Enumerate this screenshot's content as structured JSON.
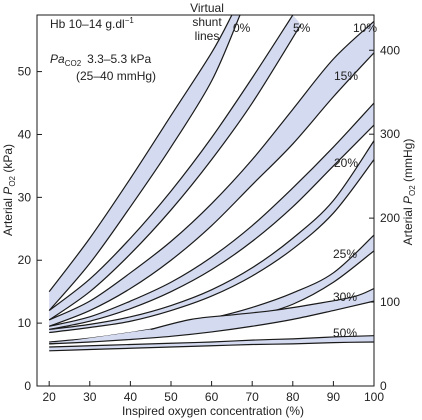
{
  "chart_data": {
    "type": "area",
    "title": "",
    "xlabel": "Inspired oxygen concentration (%)",
    "ylabel_left": "Arterial PO2 (kPa)",
    "ylabel_right": "Arterial PO2 (mmHg)",
    "xlim": [
      17,
      100
    ],
    "ylim_kpa": [
      0,
      59
    ],
    "ylim_mmhg": [
      0,
      442
    ],
    "xticks": [
      20,
      30,
      40,
      50,
      60,
      70,
      80,
      90,
      100
    ],
    "yticks_kpa": [
      0,
      10,
      20,
      30,
      40,
      50
    ],
    "yticks_mmhg": [
      0,
      100,
      200,
      300,
      400
    ],
    "annotations": {
      "hb": "Hb 10–14 g.dl",
      "hb_sup": "−1",
      "pa": "Pa",
      "pa_sub": "CO2",
      "pa_range": "3.3–5.3 kPa",
      "pa_mmhg": "(25–40 mmHg)",
      "virtual_1": "Virtual",
      "virtual_2": "shunt",
      "virtual_3": "lines"
    },
    "band_fill": "#d4daf0",
    "line_color": "#1a1a1a",
    "series": [
      {
        "name": "0%",
        "upper": [
          [
            20,
            15
          ],
          [
            30,
            23.5
          ],
          [
            40,
            33
          ],
          [
            50,
            43
          ],
          [
            60,
            53
          ],
          [
            65,
            59
          ]
        ],
        "lower": [
          [
            20,
            12
          ],
          [
            30,
            19.5
          ],
          [
            40,
            28.5
          ],
          [
            50,
            38
          ],
          [
            60,
            48.5
          ],
          [
            67,
            59
          ]
        ]
      },
      {
        "name": "5%",
        "upper": [
          [
            20,
            12
          ],
          [
            30,
            17
          ],
          [
            40,
            23.5
          ],
          [
            50,
            31
          ],
          [
            60,
            39.5
          ],
          [
            70,
            49
          ],
          [
            80,
            59
          ]
        ],
        "lower": [
          [
            20,
            10.5
          ],
          [
            30,
            15
          ],
          [
            40,
            21
          ],
          [
            50,
            28
          ],
          [
            60,
            36
          ],
          [
            70,
            45
          ],
          [
            82,
            57.5
          ]
        ]
      },
      {
        "name": "10%",
        "upper": [
          [
            20,
            10.5
          ],
          [
            30,
            13.5
          ],
          [
            40,
            18
          ],
          [
            50,
            23
          ],
          [
            60,
            29
          ],
          [
            70,
            36
          ],
          [
            80,
            44
          ],
          [
            90,
            52
          ],
          [
            100,
            58
          ]
        ],
        "lower": [
          [
            20,
            9.5
          ],
          [
            30,
            12
          ],
          [
            40,
            15.5
          ],
          [
            50,
            20
          ],
          [
            60,
            25.5
          ],
          [
            70,
            32
          ],
          [
            80,
            38.5
          ],
          [
            90,
            46
          ],
          [
            100,
            53
          ]
        ]
      },
      {
        "name": "15%",
        "upper": [
          [
            20,
            9.5
          ],
          [
            30,
            11
          ],
          [
            40,
            13.5
          ],
          [
            50,
            16.5
          ],
          [
            60,
            20.5
          ],
          [
            70,
            25.5
          ],
          [
            80,
            31.5
          ],
          [
            90,
            38
          ],
          [
            100,
            45
          ]
        ],
        "lower": [
          [
            20,
            9.0
          ],
          [
            30,
            10.3
          ],
          [
            40,
            12.3
          ],
          [
            50,
            15
          ],
          [
            60,
            18.5
          ],
          [
            70,
            23
          ],
          [
            80,
            28.5
          ],
          [
            90,
            35
          ],
          [
            100,
            41.5
          ]
        ]
      },
      {
        "name": "20%",
        "upper": [
          [
            20,
            9.0
          ],
          [
            30,
            9.8
          ],
          [
            40,
            11
          ],
          [
            50,
            12.8
          ],
          [
            60,
            15.3
          ],
          [
            70,
            18.8
          ],
          [
            80,
            23.5
          ],
          [
            90,
            29.5
          ],
          [
            100,
            39
          ]
        ],
        "lower": [
          [
            20,
            8.5
          ],
          [
            30,
            9.3
          ],
          [
            40,
            10.3
          ],
          [
            50,
            12
          ],
          [
            60,
            14.3
          ],
          [
            70,
            17.5
          ],
          [
            80,
            21.8
          ],
          [
            90,
            27.5
          ],
          [
            100,
            36
          ]
        ]
      },
      {
        "name": "25%",
        "upper": [
          [
            20,
            7.0
          ],
          [
            30,
            7.6
          ],
          [
            40,
            8.5
          ],
          [
            50,
            9.6
          ],
          [
            60,
            10.8
          ],
          [
            70,
            12.5
          ],
          [
            80,
            14.8
          ],
          [
            90,
            18
          ],
          [
            100,
            24
          ]
        ],
        "lower": [
          [
            20,
            6.7
          ],
          [
            30,
            7.2
          ],
          [
            40,
            7.8
          ],
          [
            50,
            8.5
          ],
          [
            60,
            9.5
          ],
          [
            70,
            11
          ],
          [
            80,
            13
          ],
          [
            90,
            16.5
          ],
          [
            100,
            21.5
          ]
        ]
      },
      {
        "name": "30%",
        "upper": [
          [
            45,
            9.0
          ],
          [
            55,
            10.6
          ],
          [
            65,
            11.3
          ],
          [
            75,
            12
          ],
          [
            85,
            13
          ],
          [
            95,
            14.2
          ],
          [
            100,
            15.5
          ]
        ],
        "lower": [
          [
            20,
            6.7
          ],
          [
            30,
            7.0
          ],
          [
            40,
            7.4
          ],
          [
            50,
            7.9
          ],
          [
            60,
            8.6
          ],
          [
            70,
            9.5
          ],
          [
            80,
            10.6
          ],
          [
            90,
            12
          ],
          [
            100,
            13.5
          ]
        ]
      },
      {
        "name": "50%",
        "upper": [
          [
            20,
            6.2
          ],
          [
            30,
            6.4
          ],
          [
            40,
            6.6
          ],
          [
            50,
            6.8
          ],
          [
            60,
            7.0
          ],
          [
            70,
            7.3
          ],
          [
            80,
            7.5
          ],
          [
            90,
            7.8
          ],
          [
            100,
            8.0
          ]
        ],
        "lower": [
          [
            20,
            5.6
          ],
          [
            30,
            5.8
          ],
          [
            40,
            6.0
          ],
          [
            50,
            6.2
          ],
          [
            60,
            6.4
          ],
          [
            70,
            6.6
          ],
          [
            80,
            6.7
          ],
          [
            90,
            6.9
          ],
          [
            100,
            7.0
          ]
        ]
      }
    ]
  }
}
